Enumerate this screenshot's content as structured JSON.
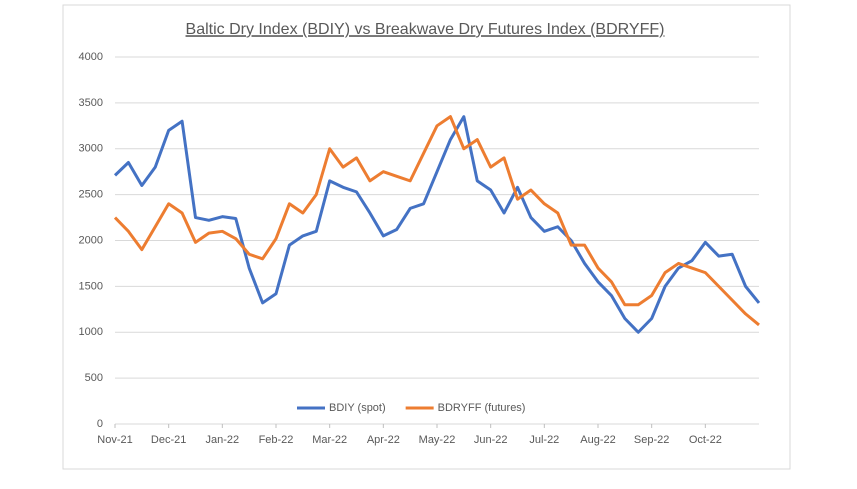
{
  "chart_data": {
    "type": "line",
    "title": "Baltic Dry Index (BDIY) vs Breakwave Dry Futures Index (BDRYFF)",
    "x": [
      0,
      0.25,
      0.5,
      0.75,
      1,
      1.25,
      1.5,
      1.75,
      2,
      2.25,
      2.5,
      2.75,
      3,
      3.25,
      3.5,
      3.75,
      4,
      4.25,
      4.5,
      4.75,
      5,
      5.25,
      5.5,
      5.75,
      6,
      6.25,
      6.5,
      6.75,
      7,
      7.25,
      7.5,
      7.75,
      8,
      8.25,
      8.5,
      8.75,
      9,
      9.25,
      9.5,
      9.75,
      10,
      10.25,
      10.5,
      10.75,
      11,
      11.25,
      11.5,
      11.75,
      12
    ],
    "series": [
      {
        "name": "BDIY (spot)",
        "color": "#4472c4",
        "values": [
          2710,
          2850,
          2600,
          2800,
          3200,
          3300,
          2250,
          2220,
          2260,
          2240,
          1700,
          1320,
          1420,
          1950,
          2050,
          2100,
          2650,
          2580,
          2530,
          2300,
          2050,
          2120,
          2350,
          2400,
          2750,
          3100,
          3350,
          2650,
          2550,
          2300,
          2580,
          2250,
          2100,
          2150,
          2000,
          1750,
          1550,
          1400,
          1150,
          1000,
          1150,
          1500,
          1700,
          1780,
          1980,
          1830,
          1850,
          1500,
          1320
        ]
      },
      {
        "name": "BDRYFF (futures)",
        "color": "#ed7d31",
        "values": [
          2250,
          2100,
          1900,
          2150,
          2400,
          2300,
          1980,
          2080,
          2100,
          2020,
          1850,
          1800,
          2020,
          2400,
          2300,
          2500,
          3000,
          2800,
          2900,
          2650,
          2750,
          2700,
          2650,
          2950,
          3250,
          3350,
          3000,
          3100,
          2800,
          2900,
          2450,
          2550,
          2400,
          2300,
          1950,
          1950,
          1700,
          1550,
          1300,
          1300,
          1400,
          1650,
          1750,
          1700,
          1650,
          1500,
          1350,
          1200,
          1080
        ]
      }
    ],
    "xlim": [
      0,
      12
    ],
    "xticks": [
      {
        "value": 0,
        "label": "Nov-21"
      },
      {
        "value": 1,
        "label": "Dec-21"
      },
      {
        "value": 2,
        "label": "Jan-22"
      },
      {
        "value": 3,
        "label": "Feb-22"
      },
      {
        "value": 4,
        "label": "Mar-22"
      },
      {
        "value": 5,
        "label": "Apr-22"
      },
      {
        "value": 6,
        "label": "May-22"
      },
      {
        "value": 7,
        "label": "Jun-22"
      },
      {
        "value": 8,
        "label": "Jul-22"
      },
      {
        "value": 9,
        "label": "Aug-22"
      },
      {
        "value": 10,
        "label": "Sep-22"
      },
      {
        "value": 11,
        "label": "Oct-22"
      }
    ],
    "ylim": [
      0,
      4000
    ],
    "yticks": [
      0,
      500,
      1000,
      1500,
      2000,
      2500,
      3000,
      3500,
      4000
    ],
    "grid": true,
    "legend": "bottom"
  }
}
